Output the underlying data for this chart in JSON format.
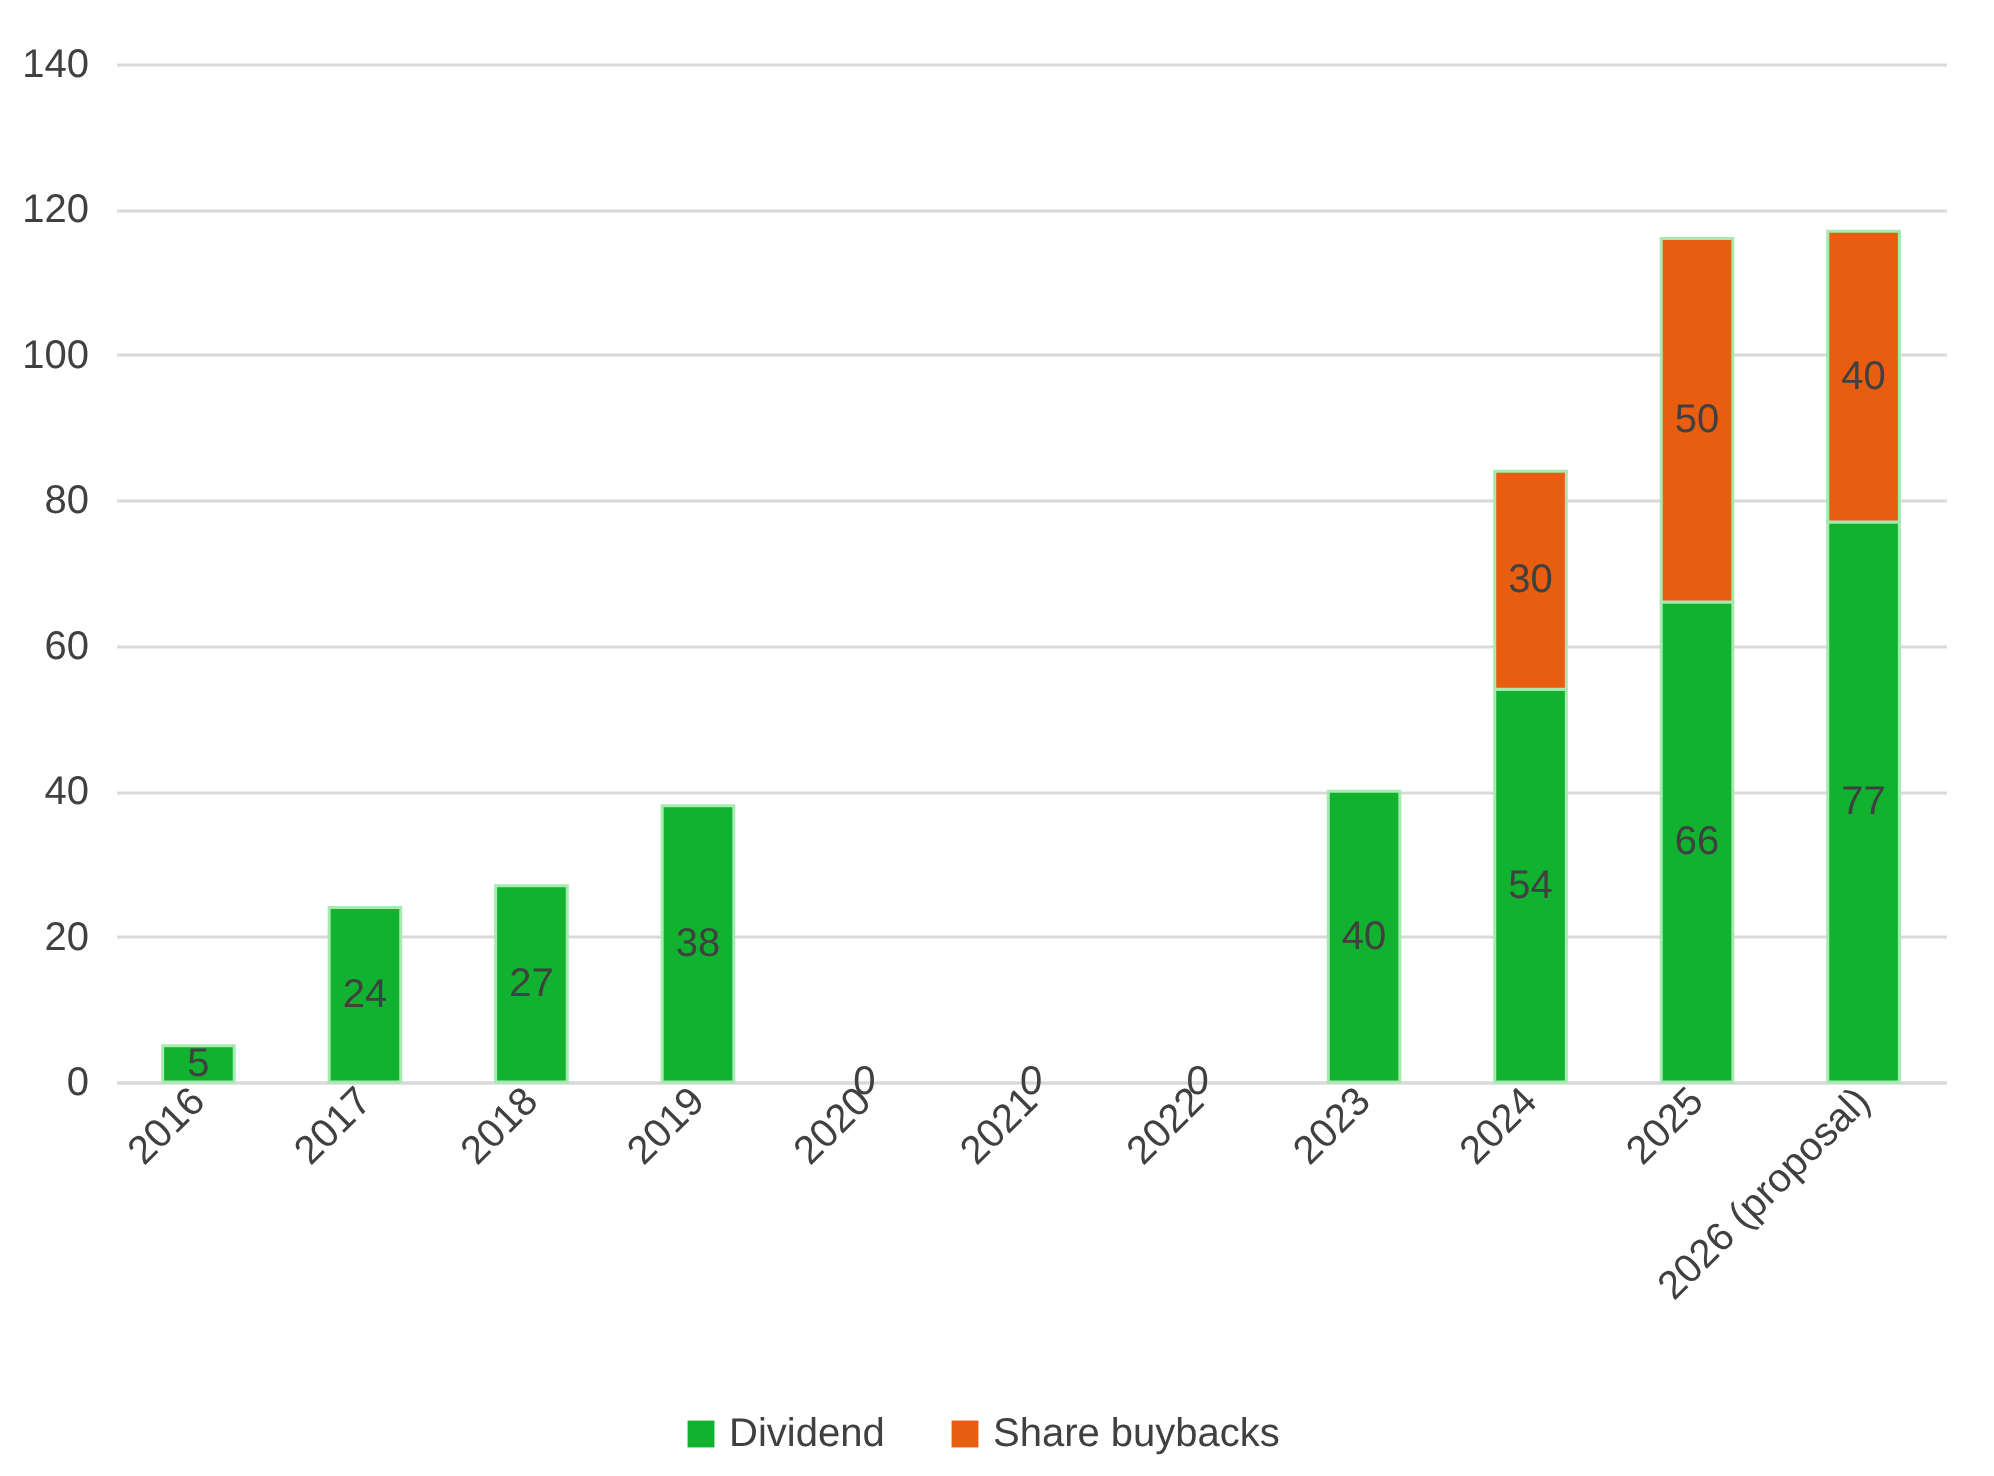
{
  "chart_data": {
    "type": "bar",
    "stacked": true,
    "categories": [
      "2016",
      "2017",
      "2018",
      "2019",
      "2020",
      "2021",
      "2022",
      "2023",
      "2024",
      "2025",
      "2026 (proposal)"
    ],
    "series": [
      {
        "name": "Dividend",
        "color": "#10b22f",
        "values": [
          5,
          24,
          27,
          38,
          0,
          0,
          0,
          40,
          54,
          66,
          77
        ]
      },
      {
        "name": "Share buybacks",
        "color": "#e85d0f",
        "values": [
          null,
          null,
          null,
          null,
          null,
          null,
          null,
          null,
          30,
          50,
          40
        ]
      }
    ],
    "ylim": [
      0,
      140
    ],
    "yticks": [
      0,
      20,
      40,
      60,
      80,
      100,
      120,
      140
    ],
    "grid": "y",
    "legend": "bottom",
    "data_labels": true
  }
}
